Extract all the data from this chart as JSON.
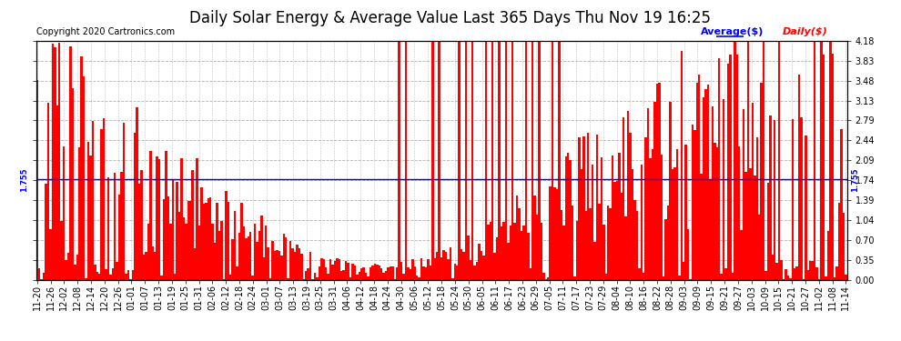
{
  "title": "Daily Solar Energy & Average Value Last 365 Days Thu Nov 19 16:25",
  "copyright": "Copyright 2020 Cartronics.com",
  "average_label": "Average($)",
  "daily_label": "Daily($)",
  "average_value": 1.755,
  "average_color": "blue",
  "bar_color": "red",
  "background_color": "white",
  "grid_color": "#aaaaaa",
  "ylim": [
    0.0,
    4.18
  ],
  "yticks": [
    0.0,
    0.35,
    0.7,
    1.04,
    1.39,
    1.74,
    2.09,
    2.44,
    2.79,
    3.13,
    3.48,
    3.83,
    4.18
  ],
  "title_fontsize": 12,
  "tick_fontsize": 7,
  "copyright_fontsize": 7,
  "legend_fontsize": 8,
  "avg_label_fontsize": 7,
  "x_tick_labels": [
    "11-20",
    "11-26",
    "12-02",
    "12-08",
    "12-14",
    "12-20",
    "12-26",
    "01-01",
    "01-07",
    "01-13",
    "01-19",
    "01-25",
    "01-31",
    "02-06",
    "02-12",
    "02-18",
    "02-24",
    "03-01",
    "03-07",
    "03-13",
    "03-19",
    "03-25",
    "03-31",
    "04-06",
    "04-12",
    "04-18",
    "04-24",
    "04-30",
    "05-06",
    "05-12",
    "05-18",
    "05-24",
    "05-30",
    "06-05",
    "06-11",
    "06-17",
    "06-23",
    "06-29",
    "07-05",
    "07-11",
    "07-17",
    "07-23",
    "07-29",
    "08-04",
    "08-10",
    "08-16",
    "08-22",
    "08-28",
    "09-03",
    "09-09",
    "09-15",
    "09-21",
    "09-27",
    "10-03",
    "10-09",
    "10-15",
    "10-21",
    "10-27",
    "11-02",
    "11-08",
    "11-14"
  ],
  "num_bars": 365
}
